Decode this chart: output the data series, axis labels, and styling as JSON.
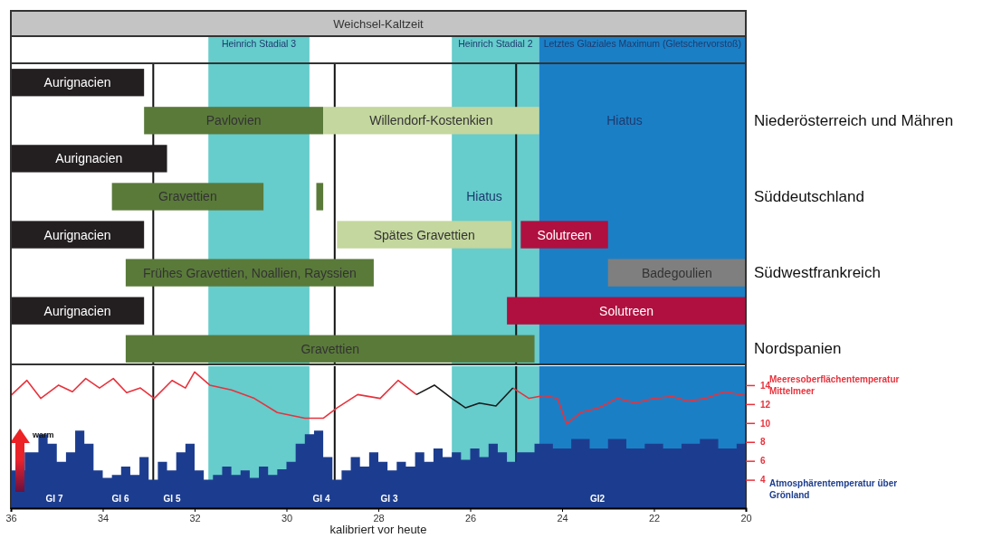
{
  "chart_data": [
    {
      "type": "bar",
      "orientation": "horizontal",
      "title": "Weichsel-Kaltzeit",
      "tick_labels": "y",
      "categories": [
        null,
        "Niederösterreich und Mähren",
        null,
        "Süddeutschland",
        null,
        "Südwestfrankreich",
        null,
        "Nordspanien"
      ],
      "xlim": [
        36,
        20
      ],
      "series": [
        {
          "name": "Aurignacien",
          "color": "#231f20",
          "values": [
            2.9,
            null,
            3.4,
            null,
            2.9,
            null,
            2.9,
            null
          ],
          "base": [
            33.1,
            null,
            32.6,
            null,
            33.1,
            null,
            33.1,
            null
          ]
        },
        {
          "name": "Pavlovien",
          "color": "#5a7a3a",
          "values": [
            null,
            3.9,
            null,
            null,
            null,
            null,
            null,
            null
          ],
          "base": [
            null,
            29.2,
            null,
            null,
            null,
            null,
            null,
            null
          ]
        },
        {
          "name": "Willendorf-Kostenkien",
          "color": "#c4d79e",
          "values": [
            null,
            4.7,
            null,
            null,
            null,
            null,
            null,
            null
          ],
          "base": [
            null,
            24.5,
            null,
            null,
            null,
            null,
            null,
            null
          ]
        },
        {
          "name": "Gravettien",
          "color": "#5a7a3a",
          "values": [
            null,
            null,
            null,
            3.3,
            null,
            null,
            null,
            8.9
          ],
          "base": [
            null,
            null,
            null,
            30.5,
            null,
            null,
            null,
            24.6
          ]
        },
        {
          "color": "#5a7a3a",
          "values": [
            null,
            null,
            null,
            0.15,
            null,
            null,
            null,
            null
          ],
          "base": [
            null,
            null,
            null,
            29.2,
            null,
            null,
            null,
            null
          ]
        },
        {
          "name": "Spätes Gravettien",
          "color": "#c4d79e",
          "values": [
            null,
            null,
            null,
            null,
            3.8,
            null,
            null,
            null
          ],
          "base": [
            null,
            null,
            null,
            null,
            25.1,
            null,
            null,
            null
          ]
        },
        {
          "name": "Frühes Gravettien, Noallien, Rayssien",
          "color": "#5a7a3a",
          "values": [
            null,
            null,
            null,
            null,
            null,
            5.4,
            null,
            null
          ],
          "base": [
            null,
            null,
            null,
            null,
            null,
            28.1,
            null,
            null
          ]
        },
        {
          "name": "Solutreen",
          "color": "#b0103f",
          "values": [
            null,
            null,
            null,
            null,
            1.9,
            null,
            5.2,
            null
          ],
          "base": [
            null,
            null,
            null,
            null,
            23.0,
            null,
            20,
            null
          ]
        },
        {
          "name": "Badegoulien",
          "color": "#7f7f7f",
          "values": [
            null,
            null,
            null,
            null,
            null,
            3.0,
            null,
            null
          ],
          "base": [
            null,
            null,
            null,
            null,
            null,
            20,
            null,
            null
          ]
        }
      ],
      "bands": [
        {
          "axis": "x",
          "from": 31.7,
          "to": 29.5,
          "label": "Heinrich Stadial 3",
          "color": "#66cccc"
        },
        {
          "axis": "x",
          "from": 26.4,
          "to": 24.5,
          "label": "Heinrich Stadial 2",
          "color": "#66cccc"
        },
        {
          "axis": "x",
          "from": 24.5,
          "to": 20,
          "label": "Letztes Glaziales Maximum (Gletschervorstoß)",
          "color": "#1b7fc6"
        }
      ],
      "ref_lines": [
        {
          "axis": "x",
          "value": 32.9,
          "color": "#111111"
        },
        {
          "axis": "x",
          "value": 28.95,
          "color": "#111111"
        },
        {
          "axis": "x",
          "value": 25.0,
          "color": "#111111"
        }
      ],
      "annotations": [
        "Hiatus",
        "Hiatus"
      ]
    },
    {
      "type": "line",
      "xlabel": "kalibriert vor heute",
      "legend": "right",
      "xlim": [
        36,
        20
      ],
      "xticks": [
        36,
        34,
        32,
        30,
        28,
        26,
        24,
        22,
        20
      ],
      "ylim": [
        1,
        16
      ],
      "yticks": [
        4,
        6,
        8,
        10,
        12,
        14
      ],
      "series": [
        {
          "name": "Atmosphärentemperatur über Grönland",
          "type": "area",
          "color": "#1c3d8f",
          "x": [
            36,
            35.7,
            35.4,
            35.2,
            35.0,
            34.8,
            34.6,
            34.4,
            34.2,
            34.0,
            33.8,
            33.6,
            33.4,
            33.2,
            33.0,
            32.8,
            32.6,
            32.4,
            32.2,
            32.0,
            31.8,
            31.6,
            31.4,
            31.2,
            31.0,
            30.8,
            30.6,
            30.4,
            30.2,
            30.0,
            29.8,
            29.6,
            29.4,
            29.2,
            29.0,
            28.8,
            28.6,
            28.4,
            28.2,
            28.0,
            27.8,
            27.6,
            27.4,
            27.2,
            27.0,
            26.8,
            26.6,
            26.4,
            26.2,
            26.0,
            25.8,
            25.6,
            25.4,
            25.2,
            25.0,
            24.6,
            24.2,
            23.8,
            23.4,
            23.0,
            22.6,
            22.2,
            21.8,
            21.4,
            21.0,
            20.6,
            20.2,
            20.0
          ],
          "values": [
            5.0,
            6.9,
            8.8,
            7.8,
            5.9,
            6.9,
            9.2,
            7.8,
            5.0,
            4.2,
            4.5,
            5.4,
            4.5,
            6.4,
            4.0,
            5.9,
            5.0,
            6.9,
            7.8,
            5.0,
            4.0,
            4.5,
            5.4,
            4.5,
            5.0,
            4.2,
            5.4,
            4.5,
            5.1,
            5.9,
            7.8,
            8.8,
            9.2,
            6.4,
            4.0,
            5.0,
            6.4,
            5.4,
            6.9,
            5.9,
            5.0,
            5.9,
            5.4,
            6.9,
            5.9,
            7.3,
            6.4,
            6.9,
            6.1,
            7.3,
            6.4,
            7.8,
            6.9,
            5.9,
            6.9,
            7.8,
            7.3,
            8.3,
            7.3,
            8.3,
            7.3,
            7.8,
            7.3,
            7.8,
            8.3,
            7.3,
            7.8,
            6.9
          ]
        },
        {
          "name": "Meeresoberflächentemperatur Mittelmeer",
          "type": "line",
          "color": "#e8323c",
          "x": [
            36,
            35.65,
            35.35,
            34.96,
            34.66,
            34.37,
            34.07,
            33.77,
            33.48,
            33.18,
            32.88,
            32.49,
            32.2,
            32.0,
            31.67,
            31.2,
            30.7,
            30.2,
            29.6,
            29.2,
            28.9,
            28.45,
            27.96,
            27.57,
            27.17,
            26.78,
            26.4,
            26.1,
            25.8,
            25.44,
            25.07,
            24.72,
            24.4,
            24.1,
            23.9,
            23.6,
            23.2,
            22.8,
            22.4,
            22.0,
            21.6,
            21.26,
            20.87,
            20.47,
            20.0
          ],
          "values": [
            12.9,
            14.5,
            12.6,
            14.0,
            13.3,
            14.7,
            13.7,
            14.7,
            13.2,
            13.7,
            12.6,
            14.5,
            13.7,
            15.4,
            14.0,
            13.5,
            12.6,
            11.1,
            10.5,
            10.5,
            11.6,
            13.0,
            12.6,
            14.5,
            13.0,
            null,
            null,
            null,
            null,
            null,
            13.7,
            12.6,
            12.9,
            12.6,
            9.9,
            11.1,
            11.6,
            12.6,
            12.1,
            12.6,
            12.8,
            12.3,
            12.6,
            13.3,
            12.9
          ]
        },
        {
          "type": "line",
          "color": "#1a1a1a",
          "x": [
            27.17,
            26.78,
            26.4,
            26.1,
            25.8,
            25.44,
            25.07
          ],
          "values": [
            13.0,
            14.0,
            12.6,
            11.6,
            12.1,
            11.8,
            13.7
          ]
        }
      ],
      "bands": [
        {
          "axis": "x",
          "from": 31.7,
          "to": 29.5,
          "color": "#66cccc"
        },
        {
          "axis": "x",
          "from": 26.4,
          "to": 24.5,
          "color": "#66cccc"
        },
        {
          "axis": "x",
          "from": 24.5,
          "to": 20,
          "color": "#1b7fc6"
        }
      ],
      "ref_lines": [
        {
          "axis": "x",
          "value": 32.9,
          "color": "#111111"
        },
        {
          "axis": "x",
          "value": 28.95,
          "color": "#111111"
        },
        {
          "axis": "x",
          "value": 25.0,
          "color": "#111111"
        }
      ],
      "annotations": [
        "warm",
        "GI 7",
        "GI 6",
        "GI 5",
        "GI 4",
        "GI 3",
        "GI2"
      ]
    }
  ]
}
